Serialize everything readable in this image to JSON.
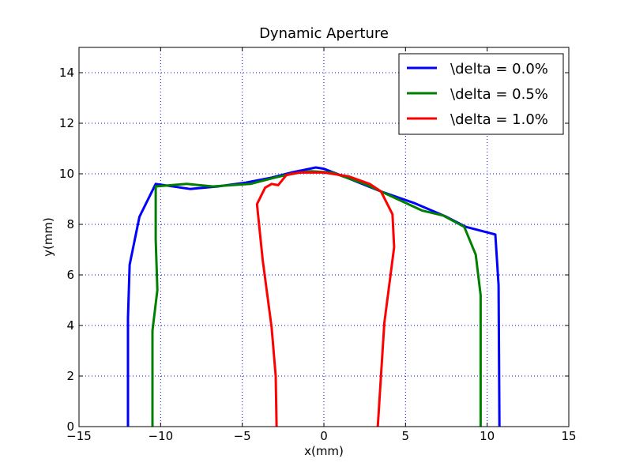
{
  "chart_data": {
    "type": "line",
    "title": "Dynamic Aperture",
    "xlabel": "x(mm)",
    "ylabel": "y(mm)",
    "xlim": [
      -15,
      15
    ],
    "ylim": [
      0,
      15
    ],
    "xticks": [
      -15,
      -10,
      -5,
      0,
      5,
      10,
      15
    ],
    "yticks": [
      0,
      2,
      4,
      6,
      8,
      10,
      12,
      14
    ],
    "xtick_labels": [
      "−15",
      "−10",
      "−5",
      "0",
      "5",
      "10",
      "15"
    ],
    "ytick_labels": [
      "0",
      "2",
      "4",
      "6",
      "8",
      "10",
      "12",
      "14"
    ],
    "grid": true,
    "legend_position": "top-right",
    "series": [
      {
        "name": "\\delta = 0.0%",
        "color": "#0000ff",
        "points": [
          [
            -12.0,
            0
          ],
          [
            -12.0,
            4.3
          ],
          [
            -11.9,
            6.4
          ],
          [
            -11.3,
            8.3
          ],
          [
            -10.3,
            9.6
          ],
          [
            -8.2,
            9.4
          ],
          [
            -6.5,
            9.5
          ],
          [
            -4.8,
            9.65
          ],
          [
            -3.2,
            9.85
          ],
          [
            -2.0,
            10.05
          ],
          [
            -0.5,
            10.25
          ],
          [
            0.0,
            10.2
          ],
          [
            1.0,
            9.95
          ],
          [
            3.5,
            9.3
          ],
          [
            5.5,
            8.85
          ],
          [
            7.5,
            8.3
          ],
          [
            8.7,
            7.9
          ],
          [
            10.5,
            7.6
          ],
          [
            10.7,
            5.6
          ],
          [
            10.75,
            0
          ]
        ]
      },
      {
        "name": "\\delta = 0.5%",
        "color": "#008000",
        "points": [
          [
            -10.5,
            0
          ],
          [
            -10.5,
            3.8
          ],
          [
            -10.2,
            5.4
          ],
          [
            -10.3,
            7.4
          ],
          [
            -10.3,
            9.5
          ],
          [
            -8.4,
            9.6
          ],
          [
            -6.8,
            9.5
          ],
          [
            -4.5,
            9.6
          ],
          [
            -3.0,
            9.85
          ],
          [
            -2.0,
            10.0
          ],
          [
            -0.8,
            10.1
          ],
          [
            0.5,
            10.05
          ],
          [
            2.5,
            9.6
          ],
          [
            4.5,
            9.0
          ],
          [
            6.0,
            8.55
          ],
          [
            7.3,
            8.35
          ],
          [
            8.6,
            7.9
          ],
          [
            9.3,
            6.8
          ],
          [
            9.6,
            5.2
          ],
          [
            9.6,
            0
          ]
        ]
      },
      {
        "name": "\\delta = 1.0%",
        "color": "#ff0000",
        "points": [
          [
            -2.9,
            0
          ],
          [
            -2.95,
            2.0
          ],
          [
            -3.2,
            3.9
          ],
          [
            -3.75,
            6.6
          ],
          [
            -4.1,
            8.8
          ],
          [
            -3.6,
            9.45
          ],
          [
            -3.2,
            9.6
          ],
          [
            -2.8,
            9.55
          ],
          [
            -2.3,
            9.95
          ],
          [
            -1.5,
            10.05
          ],
          [
            0.0,
            10.05
          ],
          [
            1.5,
            9.9
          ],
          [
            2.8,
            9.6
          ],
          [
            3.5,
            9.3
          ],
          [
            4.2,
            8.4
          ],
          [
            4.3,
            7.1
          ],
          [
            3.7,
            4.1
          ],
          [
            3.3,
            0
          ]
        ]
      }
    ]
  }
}
